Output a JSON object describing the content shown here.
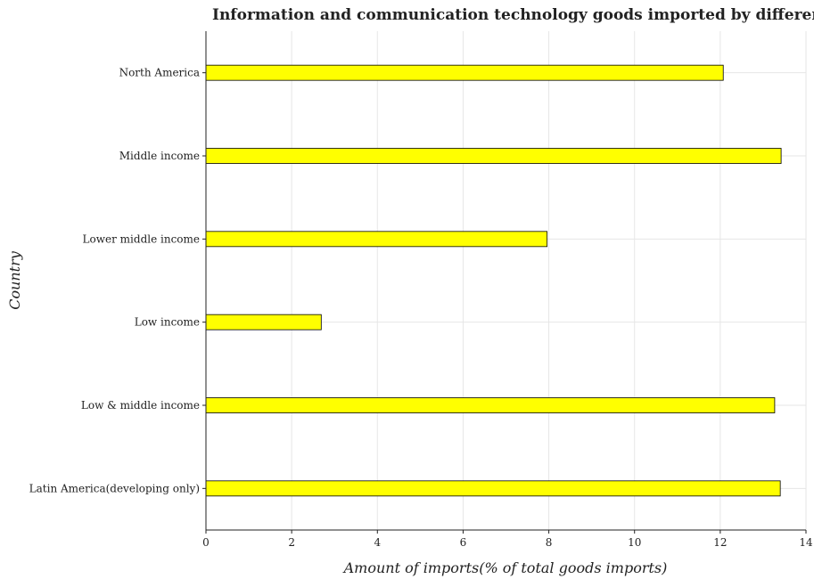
{
  "chart_data": {
    "type": "bar",
    "orientation": "horizontal",
    "title": "Information and communication technology goods imported by different countries",
    "xlabel": "Amount of imports(% of total goods imports)",
    "ylabel": "Country",
    "categories": [
      "Latin America(developing only)",
      "Low & middle income",
      "Low income",
      "Lower middle income",
      "Middle income",
      "North America"
    ],
    "values": [
      13.4,
      13.27,
      2.69,
      7.96,
      13.42,
      12.07
    ],
    "xlim": [
      0,
      14
    ],
    "xticks": [
      0,
      2,
      4,
      6,
      8,
      10,
      12,
      14
    ],
    "grid": true,
    "bar_color": "#ffff00"
  }
}
